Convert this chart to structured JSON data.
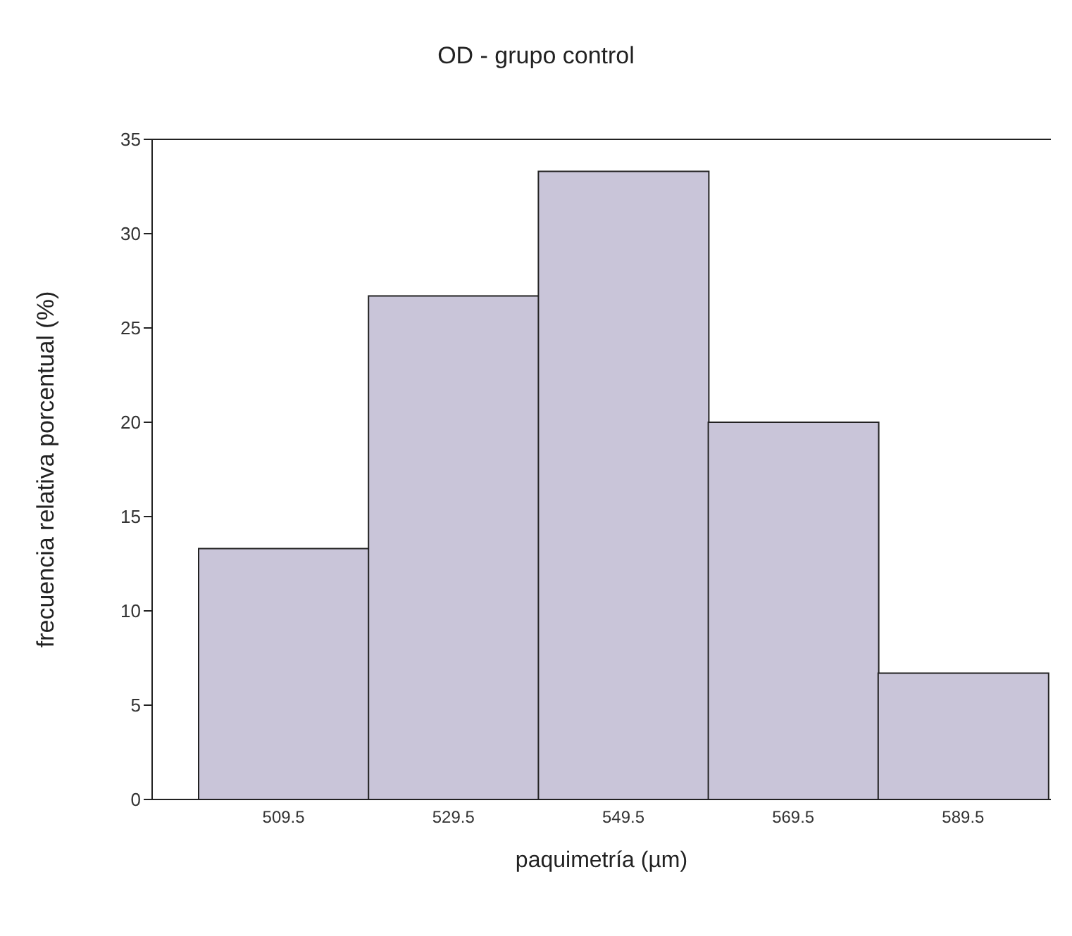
{
  "chart_data": {
    "type": "bar",
    "title": "OD - grupo control",
    "xlabel": "paquimetría  (µm)",
    "ylabel": "frecuencia relativa porcentual (%)",
    "categories": [
      "509.5",
      "529.5",
      "549.5",
      "569.5",
      "589.5"
    ],
    "values": [
      13.3,
      26.7,
      33.3,
      20,
      6.7
    ],
    "color": "#c9c5d9",
    "ylim": [
      0,
      35
    ],
    "yticks": [
      0,
      5,
      10,
      15,
      20,
      25,
      30,
      35
    ],
    "grid": false,
    "legend": false
  }
}
